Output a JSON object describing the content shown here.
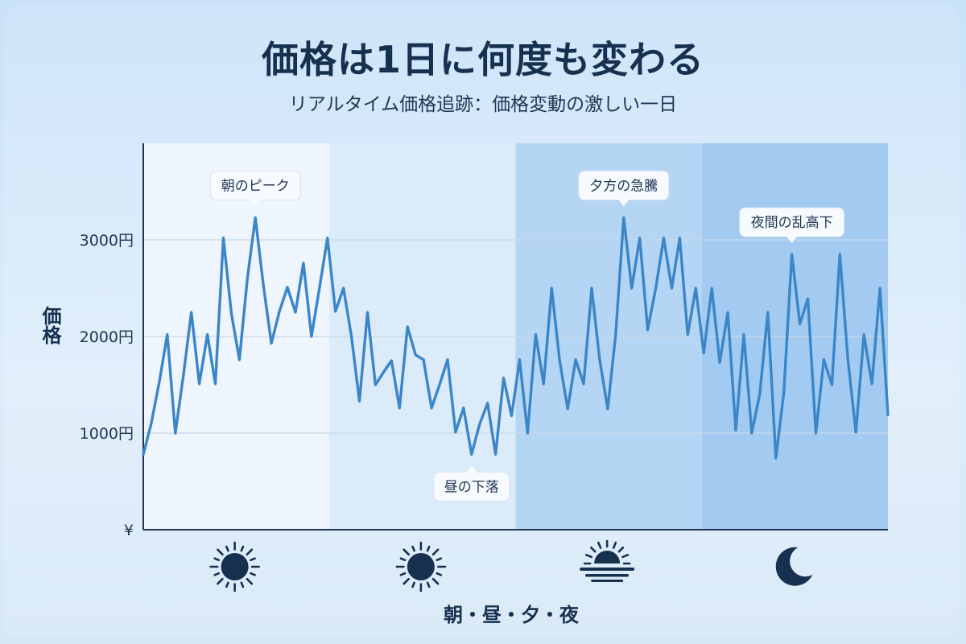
{
  "title": "価格は1日に何度も変わる",
  "subtitle": "リアルタイム価格追跡：価格変動の激しい一日",
  "colors": {
    "line": "#3b86c8",
    "axis": "#1f3552",
    "grid": "#c9d8e8",
    "band_morning": "#eef5fd",
    "band_noon": "#dcebfa",
    "band_evening": "#b5d5f4",
    "band_night": "#a3cbf1",
    "icon": "#16304f"
  },
  "chart_data": {
    "type": "line",
    "title": "価格は1日に何度も変わる",
    "subtitle": "リアルタイム価格追跡：価格変動の激しい一日",
    "xlabel": "朝・昼・夕・夜",
    "ylabel": "価格",
    "ylim": [
      0,
      4000
    ],
    "yticks": [
      {
        "value": 3000,
        "label": "3000円"
      },
      {
        "value": 2000,
        "label": "2000円"
      },
      {
        "value": 1000,
        "label": "1000円"
      },
      {
        "value": 0,
        "label": "¥"
      }
    ],
    "grid": true,
    "periods": [
      {
        "name": "朝",
        "icon": "sun-icon"
      },
      {
        "name": "昼",
        "icon": "sun-icon"
      },
      {
        "name": "夕",
        "icon": "sunset-icon"
      },
      {
        "name": "夜",
        "icon": "moon-icon"
      }
    ],
    "series": [
      {
        "values": [
          780,
          1100,
          1530,
          2020,
          1000,
          1590,
          2250,
          1510,
          2020,
          1510,
          3020,
          2240,
          1760,
          2600,
          3230,
          2530,
          1930,
          2260,
          2510,
          2250,
          2760,
          2000,
          2500,
          3020,
          2260,
          2500,
          2000,
          1330,
          2250,
          1500,
          1630,
          1750,
          1260,
          2100,
          1810,
          1760,
          1260,
          1500,
          1760,
          1010,
          1260,
          780,
          1090,
          1310,
          780,
          1570,
          1180,
          1760,
          1000,
          2020,
          1510,
          2500,
          1750,
          1250,
          1760,
          1510,
          2500,
          1760,
          1250,
          2020,
          3230,
          2500,
          3020,
          2070,
          2500,
          3020,
          2500,
          3020,
          2020,
          2500,
          1830,
          2500,
          1730,
          2250,
          1030,
          2020,
          1000,
          1410,
          2250,
          740,
          1420,
          2850,
          2130,
          2390,
          1000,
          1760,
          1500,
          2850,
          1760,
          1010,
          2020,
          1510,
          2500,
          1190
        ]
      }
    ],
    "annotations": [
      {
        "text": "朝のピーク",
        "index": 14
      },
      {
        "text": "昼の下落",
        "index": 41
      },
      {
        "text": "夕方の急騰",
        "index": 60
      },
      {
        "text": "夜間の乱高下",
        "index": 81
      }
    ]
  }
}
